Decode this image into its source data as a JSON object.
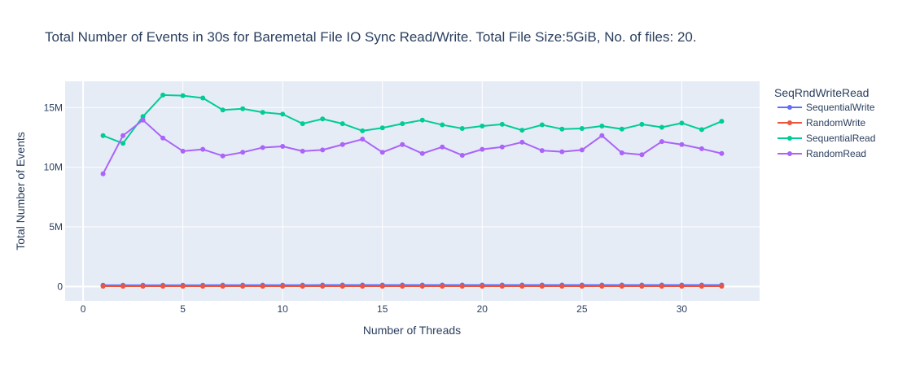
{
  "chart_data": {
    "type": "line",
    "title": "Total Number of Events in 30s for Baremetal File IO Sync Read/Write. Total File Size:5GiB, No. of files: 20.",
    "xlabel": "Number of Threads",
    "ylabel": "Total Number of Events",
    "xlim": [
      -0.9,
      33.9
    ],
    "ylim": [
      -1200000,
      17200000
    ],
    "xticks": [
      0,
      5,
      10,
      15,
      20,
      25,
      30
    ],
    "xtick_labels": [
      "0",
      "5",
      "10",
      "15",
      "20",
      "25",
      "30"
    ],
    "yticks": [
      0,
      5000000,
      10000000,
      15000000
    ],
    "ytick_labels": [
      "0",
      "5M",
      "10M",
      "15M"
    ],
    "grid": true,
    "legend_title": "SeqRndWriteRead",
    "legend_position": "right",
    "x": [
      1,
      2,
      3,
      4,
      5,
      6,
      7,
      8,
      9,
      10,
      11,
      12,
      13,
      14,
      15,
      16,
      17,
      18,
      19,
      20,
      21,
      22,
      23,
      24,
      25,
      26,
      27,
      28,
      29,
      30,
      31,
      32
    ],
    "series": [
      {
        "name": "SequentialWrite",
        "color": "#636efa",
        "values": [
          110000,
          110000,
          110000,
          115000,
          115000,
          115000,
          120000,
          120000,
          120000,
          120000,
          120000,
          125000,
          125000,
          125000,
          125000,
          125000,
          125000,
          125000,
          125000,
          130000,
          130000,
          130000,
          130000,
          130000,
          130000,
          130000,
          130000,
          130000,
          130000,
          130000,
          130000,
          130000
        ]
      },
      {
        "name": "RandomWrite",
        "color": "#ef553b",
        "values": [
          30000,
          30000,
          30000,
          30000,
          30000,
          30000,
          30000,
          30000,
          30000,
          30000,
          30000,
          30000,
          30000,
          30000,
          30000,
          30000,
          30000,
          30000,
          30000,
          30000,
          30000,
          30000,
          30000,
          30000,
          30000,
          30000,
          30000,
          30000,
          30000,
          30000,
          30000,
          30000
        ]
      },
      {
        "name": "SequentialRead",
        "color": "#00cc96",
        "values": [
          12650000,
          12000000,
          14250000,
          16050000,
          16000000,
          15800000,
          14800000,
          14900000,
          14600000,
          14450000,
          13650000,
          14050000,
          13650000,
          13050000,
          13300000,
          13650000,
          13950000,
          13550000,
          13250000,
          13450000,
          13600000,
          13100000,
          13550000,
          13200000,
          13250000,
          13450000,
          13200000,
          13600000,
          13350000,
          13700000,
          13150000,
          13850000
        ]
      },
      {
        "name": "RandomRead",
        "color": "#ab63fa",
        "values": [
          9450000,
          12650000,
          13950000,
          12450000,
          11350000,
          11500000,
          10950000,
          11250000,
          11650000,
          11750000,
          11350000,
          11450000,
          11900000,
          12350000,
          11250000,
          11900000,
          11150000,
          11700000,
          11000000,
          11500000,
          11700000,
          12100000,
          11400000,
          11300000,
          11450000,
          12650000,
          11200000,
          11050000,
          12150000,
          11900000,
          11550000,
          11150000
        ]
      }
    ]
  }
}
